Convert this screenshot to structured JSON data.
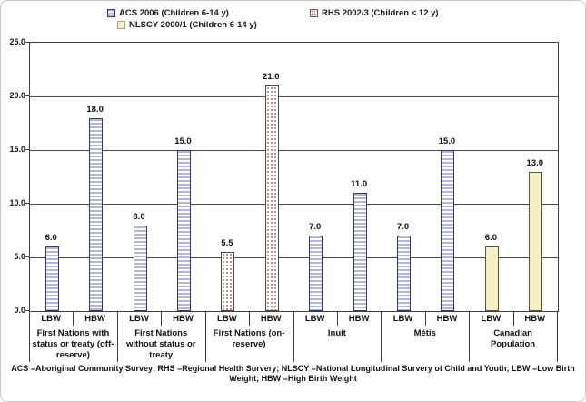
{
  "legend": {
    "items": [
      {
        "label": "ACS 2006 (Children 6-14 y)",
        "series_key": "acs"
      },
      {
        "label": "RHS 2002/3 (Children < 12 y)",
        "series_key": "rhs"
      },
      {
        "label": "NLSCY 2000/1 (Children 6-14 y)",
        "series_key": "nlscy"
      }
    ]
  },
  "chart_data": {
    "type": "bar",
    "title": "",
    "xlabel": "",
    "ylabel": "",
    "ylim": [
      0,
      25
    ],
    "yticks": [
      0,
      5,
      10,
      15,
      20,
      25
    ],
    "ytick_labels": [
      "0.0",
      "5.0",
      "10.0",
      "15.0",
      "20.0",
      "25.0"
    ],
    "grid": true,
    "legend_position": "top",
    "bar_pair_labels": [
      "LBW",
      "HBW"
    ],
    "groups": [
      {
        "category": "First Nations with status or treaty (off-reserve)",
        "series": "ACS 2006 (Children 6-14 y)",
        "style": "acs",
        "values": [
          6.0,
          18.0
        ]
      },
      {
        "category": "First Nations without status or treaty",
        "series": "ACS 2006 (Children 6-14 y)",
        "style": "acs",
        "values": [
          8.0,
          15.0
        ]
      },
      {
        "category": "First Nations (on-reserve)",
        "series": "RHS 2002/3 (Children < 12 y)",
        "style": "rhs",
        "values": [
          5.5,
          21.0
        ]
      },
      {
        "category": "Inuit",
        "series": "ACS 2006 (Children 6-14 y)",
        "style": "acs",
        "values": [
          7.0,
          11.0
        ]
      },
      {
        "category": "Métis",
        "series": "ACS 2006 (Children 6-14 y)",
        "style": "acs",
        "values": [
          7.0,
          15.0
        ]
      },
      {
        "category": "Canadian Population",
        "series": "NLSCY 2000/1 (Children 6-14 y)",
        "style": "nlscy",
        "values": [
          6.0,
          13.0
        ]
      }
    ],
    "colors": {
      "acs_fill": "#aeb6e2",
      "acs_border": "#38385e",
      "rhs_dot": "#c06464",
      "rhs_border": "#4a4a4a",
      "nlscy_fill": "#f5f1c2",
      "nlscy_border": "#55553a",
      "grid": "#4a4a4a",
      "text": "#111111"
    }
  },
  "footnote": "ACS =Aboriginal Community Survey; RHS =Regional Health Survery; NLSCY =National Longitudinal Survery of Child and Youth; LBW =Low Birth Weight; HBW =High Birth Weight"
}
